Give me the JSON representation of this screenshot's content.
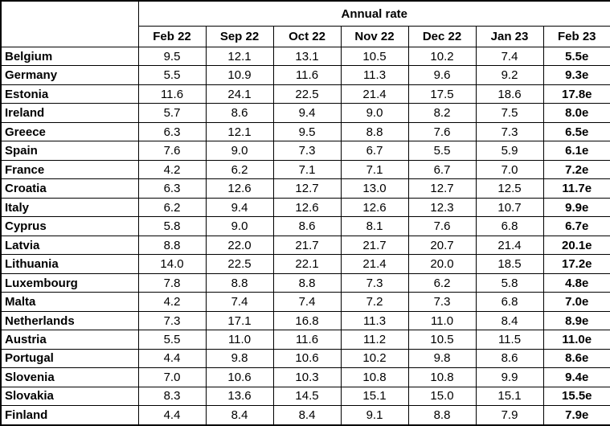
{
  "colors": {
    "border": "#000000",
    "text": "#000000",
    "background": "#ffffff"
  },
  "chart_data": {
    "type": "table",
    "title": "Annual rate",
    "columns": [
      "Feb 22",
      "Sep 22",
      "Oct 22",
      "Nov 22",
      "Dec 22",
      "Jan 23",
      "Feb 23"
    ],
    "rows": [
      {
        "country": "Belgium",
        "values": [
          "9.5",
          "12.1",
          "13.1",
          "10.5",
          "10.2",
          "7.4",
          "5.5e"
        ]
      },
      {
        "country": "Germany",
        "values": [
          "5.5",
          "10.9",
          "11.6",
          "11.3",
          "9.6",
          "9.2",
          "9.3e"
        ]
      },
      {
        "country": "Estonia",
        "values": [
          "11.6",
          "24.1",
          "22.5",
          "21.4",
          "17.5",
          "18.6",
          "17.8e"
        ]
      },
      {
        "country": "Ireland",
        "values": [
          "5.7",
          "8.6",
          "9.4",
          "9.0",
          "8.2",
          "7.5",
          "8.0e"
        ]
      },
      {
        "country": "Greece",
        "values": [
          "6.3",
          "12.1",
          "9.5",
          "8.8",
          "7.6",
          "7.3",
          "6.5e"
        ]
      },
      {
        "country": "Spain",
        "values": [
          "7.6",
          "9.0",
          "7.3",
          "6.7",
          "5.5",
          "5.9",
          "6.1e"
        ]
      },
      {
        "country": "France",
        "values": [
          "4.2",
          "6.2",
          "7.1",
          "7.1",
          "6.7",
          "7.0",
          "7.2e"
        ]
      },
      {
        "country": "Croatia",
        "values": [
          "6.3",
          "12.6",
          "12.7",
          "13.0",
          "12.7",
          "12.5",
          "11.7e"
        ]
      },
      {
        "country": "Italy",
        "values": [
          "6.2",
          "9.4",
          "12.6",
          "12.6",
          "12.3",
          "10.7",
          "9.9e"
        ]
      },
      {
        "country": "Cyprus",
        "values": [
          "5.8",
          "9.0",
          "8.6",
          "8.1",
          "7.6",
          "6.8",
          "6.7e"
        ]
      },
      {
        "country": "Latvia",
        "values": [
          "8.8",
          "22.0",
          "21.7",
          "21.7",
          "20.7",
          "21.4",
          "20.1e"
        ]
      },
      {
        "country": "Lithuania",
        "values": [
          "14.0",
          "22.5",
          "22.1",
          "21.4",
          "20.0",
          "18.5",
          "17.2e"
        ]
      },
      {
        "country": "Luxembourg",
        "values": [
          "7.8",
          "8.8",
          "8.8",
          "7.3",
          "6.2",
          "5.8",
          "4.8e"
        ]
      },
      {
        "country": "Malta",
        "values": [
          "4.2",
          "7.4",
          "7.4",
          "7.2",
          "7.3",
          "6.8",
          "7.0e"
        ]
      },
      {
        "country": "Netherlands",
        "values": [
          "7.3",
          "17.1",
          "16.8",
          "11.3",
          "11.0",
          "8.4",
          "8.9e"
        ]
      },
      {
        "country": "Austria",
        "values": [
          "5.5",
          "11.0",
          "11.6",
          "11.2",
          "10.5",
          "11.5",
          "11.0e"
        ]
      },
      {
        "country": "Portugal",
        "values": [
          "4.4",
          "9.8",
          "10.6",
          "10.2",
          "9.8",
          "8.6",
          "8.6e"
        ]
      },
      {
        "country": "Slovenia",
        "values": [
          "7.0",
          "10.6",
          "10.3",
          "10.8",
          "10.8",
          "9.9",
          "9.4e"
        ]
      },
      {
        "country": "Slovakia",
        "values": [
          "8.3",
          "13.6",
          "14.5",
          "15.1",
          "15.0",
          "15.1",
          "15.5e"
        ]
      },
      {
        "country": "Finland",
        "values": [
          "4.4",
          "8.4",
          "8.4",
          "9.1",
          "8.8",
          "7.9",
          "7.9e"
        ]
      }
    ]
  }
}
